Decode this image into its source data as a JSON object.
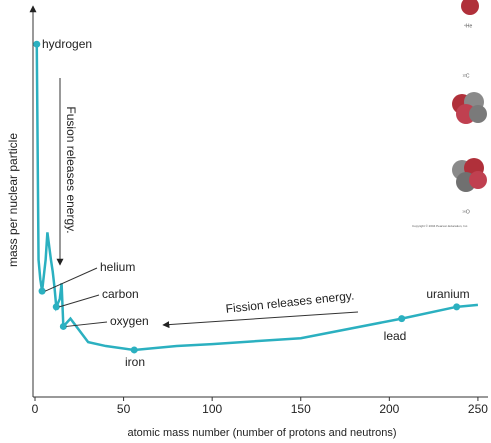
{
  "chart_data": {
    "type": "line",
    "x_label": "atomic mass number (number of protons and neutrons)",
    "y_label": "mass per nuclear particle",
    "x": [
      1,
      2,
      3,
      4,
      6,
      7,
      9,
      10,
      11,
      12,
      14,
      15,
      16,
      20,
      30,
      40,
      56,
      80,
      100,
      150,
      207,
      238,
      250
    ],
    "values": [
      90,
      35,
      30,
      27,
      35,
      42,
      35,
      32,
      28,
      23,
      25,
      29,
      18,
      20,
      14,
      13,
      12,
      13,
      13.5,
      15,
      20,
      23,
      23.5
    ],
    "color": "#2bb0c0",
    "xlim": [
      0,
      254
    ],
    "ylim": [
      0,
      100
    ],
    "xticks": [
      0,
      50,
      100,
      150,
      200,
      250
    ],
    "point_labels": [
      {
        "text": "hydrogen",
        "index": 0
      },
      {
        "text": "helium",
        "index": 3
      },
      {
        "text": "carbon",
        "index": 9
      },
      {
        "text": "oxygen",
        "index": 12
      },
      {
        "text": "iron",
        "index": 16
      },
      {
        "text": "lead",
        "index": 20
      },
      {
        "text": "uranium",
        "index": 21
      }
    ],
    "annotations": [
      "Fusion releases energy.",
      "Fission releases energy."
    ],
    "inset_labels": [
      "⁴He",
      "¹²C",
      "¹⁶O",
      "Copyright © 2004 Pearson Education, Inc."
    ]
  }
}
